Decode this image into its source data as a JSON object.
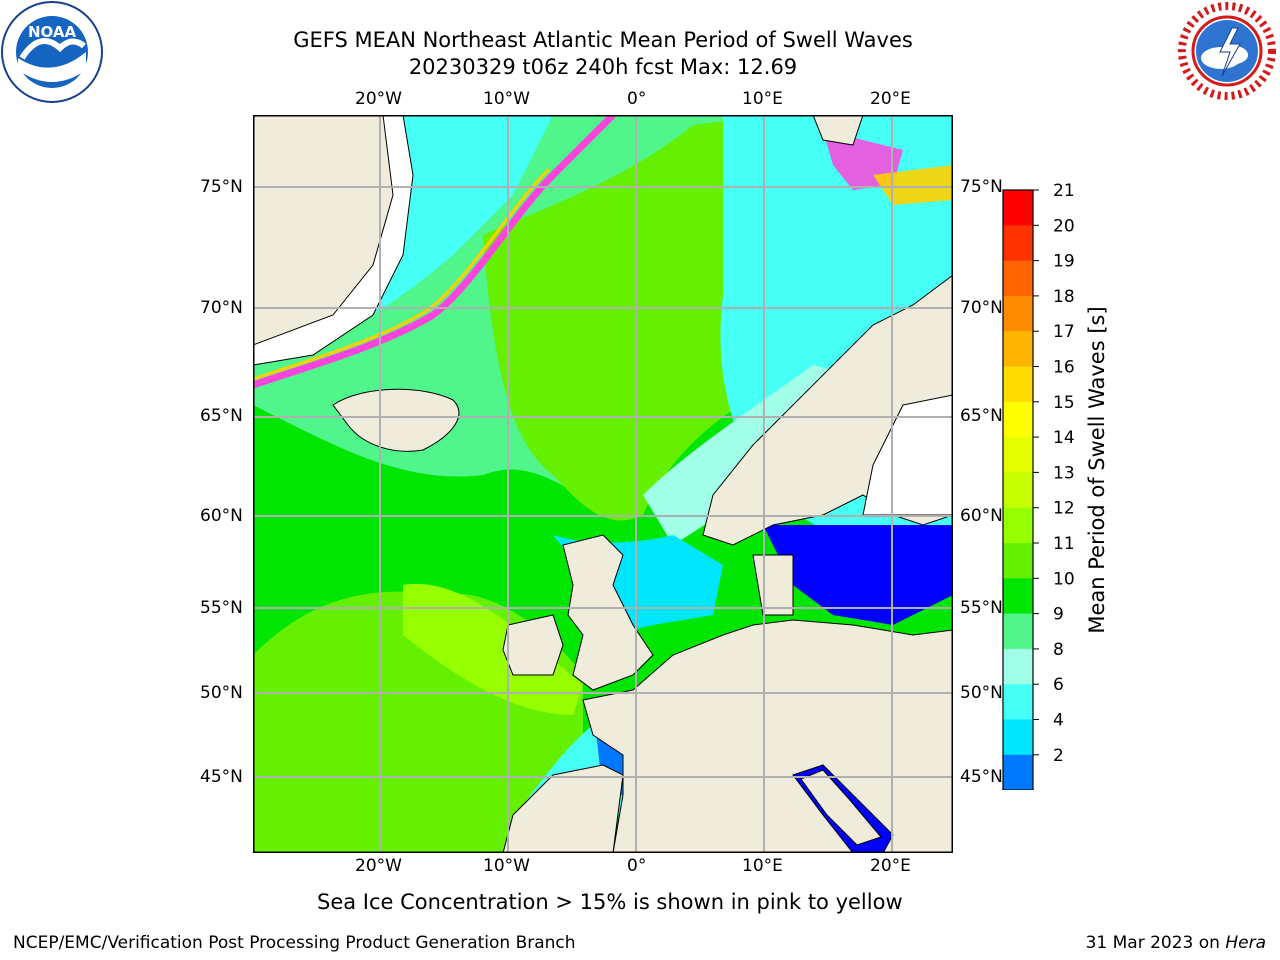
{
  "title": {
    "line1": "GEFS MEAN Northeast Atlantic Mean Period of Swell Waves",
    "line2": "20230329 t06z 240h fcst   Max: 12.69"
  },
  "map": {
    "lon_ticks_top": [
      "20°W",
      "10°W",
      "0°",
      "10°E",
      "20°E"
    ],
    "lon_ticks_bottom": [
      "20°W",
      "10°W",
      "0°",
      "10°E",
      "20°E"
    ],
    "lat_ticks_left": [
      "75°N",
      "70°N",
      "65°N",
      "60°N",
      "55°N",
      "50°N",
      "45°N"
    ],
    "lat_ticks_right": [
      "75°N",
      "70°N",
      "65°N",
      "60°N",
      "55°N",
      "50°N",
      "45°N"
    ],
    "land_color": "#efecdc",
    "ice_colors": [
      "#ff44dd",
      "#ffd000"
    ]
  },
  "colorbar": {
    "label": "Mean Period of Swell Waves [s]",
    "ticks": [
      "21",
      "20",
      "19",
      "18",
      "17",
      "16",
      "15",
      "14",
      "13",
      "12",
      "11",
      "10",
      "9",
      "8",
      "6",
      "4",
      "2"
    ],
    "colors_top_to_bottom": [
      "#ff0000",
      "#ff3200",
      "#ff6400",
      "#ff8c00",
      "#ffb400",
      "#ffdc00",
      "#ffff00",
      "#e6ff00",
      "#c8ff00",
      "#96ff00",
      "#64f000",
      "#00e600",
      "#50f58c",
      "#a0ffe6",
      "#46fff5",
      "#00e6ff",
      "#0078ff"
    ],
    "extend_color": "#0000ff"
  },
  "note": "Sea Ice Concentration > 15% is shown in pink to yellow",
  "footer": {
    "left": "NCEP/EMC/Verification Post Processing Product Generation Branch",
    "date": "31 Mar 2023 on ",
    "machine": "Hera"
  },
  "logos": {
    "noaa": "NOAA",
    "nws": "NATIONAL WEATHER SERVICE"
  }
}
